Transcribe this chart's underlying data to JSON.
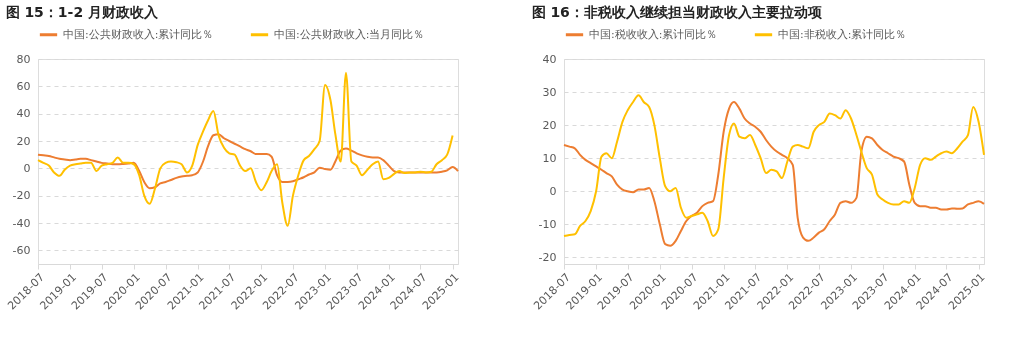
{
  "chart_data": [
    {
      "type": "line",
      "title": "图 15：1-2 月财政收入",
      "legend": "top",
      "grid": "y",
      "marker": "none",
      "line_style": "solid",
      "x": [
        "2018-07",
        "2018-08",
        "2018-09",
        "2018-10",
        "2018-11",
        "2018-12",
        "2019-01",
        "2019-02",
        "2019-03",
        "2019-04",
        "2019-05",
        "2019-06",
        "2019-07",
        "2019-08",
        "2019-09",
        "2019-10",
        "2019-11",
        "2019-12",
        "2020-01",
        "2020-02",
        "2020-03",
        "2020-04",
        "2020-05",
        "2020-06",
        "2020-07",
        "2020-08",
        "2020-09",
        "2020-10",
        "2020-11",
        "2020-12",
        "2021-01",
        "2021-02",
        "2021-03",
        "2021-04",
        "2021-05",
        "2021-06",
        "2021-07",
        "2021-08",
        "2021-09",
        "2021-10",
        "2021-11",
        "2021-12",
        "2022-01",
        "2022-02",
        "2022-03",
        "2022-04",
        "2022-05",
        "2022-06",
        "2022-07",
        "2022-08",
        "2022-09",
        "2022-10",
        "2022-11",
        "2022-12",
        "2023-01",
        "2023-02",
        "2023-03",
        "2023-04",
        "2023-05",
        "2023-06",
        "2023-07",
        "2023-08",
        "2023-09",
        "2023-10",
        "2023-11",
        "2023-12",
        "2024-01",
        "2024-02",
        "2024-03",
        "2024-04",
        "2024-05",
        "2024-06",
        "2024-07",
        "2024-08",
        "2024-09",
        "2024-10",
        "2024-11",
        "2024-12",
        "2025-01",
        "2025-02"
      ],
      "xlim": [
        "2018-07",
        "2025-02"
      ],
      "xticks": [
        "2018-07",
        "2019-01",
        "2019-07",
        "2020-01",
        "2020-07",
        "2021-01",
        "2021-07",
        "2022-01",
        "2022-07",
        "2023-01",
        "2023-07",
        "2024-01",
        "2024-07",
        "2025-01"
      ],
      "ylim": [
        -70,
        80
      ],
      "yticks": [
        -60,
        -40,
        -20,
        0,
        20,
        40,
        60,
        80
      ],
      "series": [
        {
          "name": "中国:公共财政收入:累计同比％",
          "color": "#ed7d31",
          "values": [
            10,
            9.5,
            9,
            8,
            7,
            6.5,
            6,
            6.5,
            7,
            7,
            6,
            5,
            4,
            3.5,
            3,
            3,
            3.2,
            3.5,
            4,
            -2,
            -10,
            -14.5,
            -13.8,
            -11,
            -10,
            -8.5,
            -7,
            -6,
            -5.5,
            -5,
            -3,
            5,
            16,
            24.2,
            25,
            22,
            20,
            18,
            16,
            14,
            12.5,
            10.5,
            10.5,
            10.5,
            8.5,
            -5,
            -10,
            -10,
            -9.5,
            -8,
            -6.5,
            -4.5,
            -3,
            0.5,
            -0.5,
            -1,
            5,
            13,
            14.5,
            13,
            11,
            9.5,
            8.5,
            8,
            8,
            6,
            2,
            -2,
            -3,
            -3,
            -3,
            -3,
            -3,
            -3,
            -3,
            -3,
            -2.5,
            -1.5,
            1,
            -2
          ]
        },
        {
          "name": "中国:公共财政收入:当月同比％",
          "color": "#ffc000",
          "values": [
            6,
            4,
            2,
            -3,
            -5.5,
            -1,
            2,
            3,
            3.5,
            4,
            4,
            -2,
            2,
            3,
            4,
            8,
            4,
            4,
            3,
            -5,
            -20,
            -26,
            -15,
            0,
            4,
            5,
            4.5,
            3,
            -3,
            2,
            17,
            27,
            35,
            42,
            24,
            15,
            11,
            10,
            2,
            -2,
            0,
            -10,
            -16,
            -10,
            -2,
            3,
            -25,
            -42,
            -20,
            -5,
            6,
            9,
            14,
            20,
            61,
            50,
            25,
            5,
            70,
            5,
            2,
            -5,
            -1,
            3,
            5,
            -8,
            -7,
            -4,
            -2,
            -3.5,
            -3,
            -3,
            -2.5,
            -3,
            -2.5,
            3,
            6,
            10,
            24,
            null
          ]
        }
      ]
    },
    {
      "type": "line",
      "title": "图 16：非税收入继续担当财政收入主要拉动项",
      "legend": "top",
      "grid": "y",
      "marker": "none",
      "line_style": "solid",
      "x": [
        "2018-07",
        "2018-08",
        "2018-09",
        "2018-10",
        "2018-11",
        "2018-12",
        "2019-01",
        "2019-02",
        "2019-03",
        "2019-04",
        "2019-05",
        "2019-06",
        "2019-07",
        "2019-08",
        "2019-09",
        "2019-10",
        "2019-11",
        "2019-12",
        "2020-01",
        "2020-02",
        "2020-03",
        "2020-04",
        "2020-05",
        "2020-06",
        "2020-07",
        "2020-08",
        "2020-09",
        "2020-10",
        "2020-11",
        "2020-12",
        "2021-01",
        "2021-02",
        "2021-03",
        "2021-04",
        "2021-05",
        "2021-06",
        "2021-07",
        "2021-08",
        "2021-09",
        "2021-10",
        "2021-11",
        "2021-12",
        "2022-01",
        "2022-02",
        "2022-03",
        "2022-04",
        "2022-05",
        "2022-06",
        "2022-07",
        "2022-08",
        "2022-09",
        "2022-10",
        "2022-11",
        "2022-12",
        "2023-01",
        "2023-02",
        "2023-03",
        "2023-04",
        "2023-05",
        "2023-06",
        "2023-07",
        "2023-08",
        "2023-09",
        "2023-10",
        "2023-11",
        "2023-12",
        "2024-01",
        "2024-02",
        "2024-03",
        "2024-04",
        "2024-05",
        "2024-06",
        "2024-07",
        "2024-08",
        "2024-09",
        "2024-10",
        "2024-11",
        "2024-12",
        "2025-01",
        "2025-02"
      ],
      "xlim": [
        "2018-07",
        "2025-02"
      ],
      "xticks": [
        "2018-07",
        "2019-01",
        "2019-07",
        "2020-01",
        "2020-07",
        "2021-01",
        "2021-07",
        "2022-01",
        "2022-07",
        "2023-01",
        "2023-07",
        "2024-01",
        "2024-07",
        "2025-01"
      ],
      "ylim": [
        -22,
        40
      ],
      "yticks": [
        -20,
        -10,
        0,
        10,
        20,
        30,
        40
      ],
      "series": [
        {
          "name": "中国:税收收入:累计同比％",
          "color": "#ed7d31",
          "values": [
            14,
            13.5,
            13,
            11,
            9.5,
            8.5,
            7.5,
            6.5,
            5.5,
            4.5,
            2,
            0.5,
            0,
            -0.3,
            0.5,
            0.5,
            1,
            -3,
            -10,
            -16,
            -16.5,
            -15,
            -12,
            -9,
            -7.5,
            -6.5,
            -4.5,
            -3.5,
            -3,
            5,
            18,
            25,
            27,
            25,
            22,
            20.5,
            19.5,
            18,
            15.5,
            13.5,
            12,
            11,
            10,
            8,
            -8,
            -14,
            -15,
            -14,
            -12.5,
            -11.5,
            -9,
            -7,
            -3.5,
            -3,
            -3.5,
            -2,
            12,
            16.5,
            16,
            14,
            12.5,
            11.5,
            10.5,
            10,
            9,
            2,
            -3.5,
            -4.5,
            -4.5,
            -5,
            -5,
            -5.5,
            -5.5,
            -5.2,
            -5.3,
            -5.2,
            -4,
            -3.5,
            -3,
            -3.8
          ]
        },
        {
          "name": "中国:非税收入:累计同比％",
          "color": "#ffc000",
          "values": [
            -13.5,
            -13.2,
            -13,
            -10.5,
            -9,
            -6,
            0,
            10.5,
            11.5,
            10,
            15,
            21,
            24.5,
            27,
            29,
            27,
            25.5,
            20,
            10,
            1.5,
            0,
            1,
            -5,
            -8,
            -7.5,
            -7,
            -6.5,
            -9,
            -13.5,
            -11.5,
            4,
            17,
            20.5,
            16.5,
            16,
            17,
            14,
            10,
            5.5,
            6.5,
            6,
            4,
            9,
            13.5,
            14,
            13.5,
            13,
            18,
            20,
            21,
            23.5,
            23,
            22,
            24.5,
            22,
            17,
            12,
            7,
            5,
            -1,
            -2.5,
            -3.5,
            -4,
            -4,
            -3,
            -3.5,
            1,
            8,
            10,
            9.5,
            10.5,
            11.5,
            12,
            11.5,
            13,
            15,
            17,
            25.5,
            21,
            11
          ]
        }
      ]
    }
  ]
}
